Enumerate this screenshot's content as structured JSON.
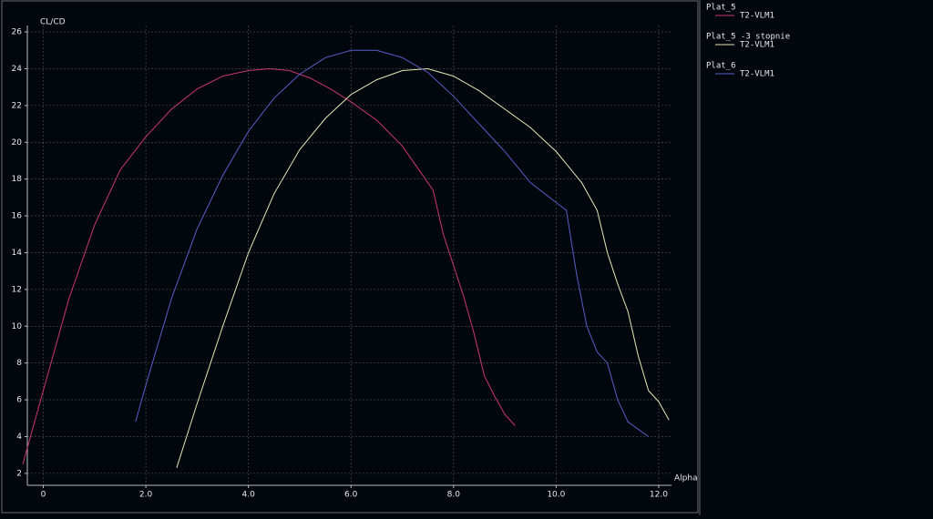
{
  "chart_data": {
    "type": "line",
    "y_label": "CL/CD",
    "x_label": "Alpha",
    "xlim": [
      -0.4,
      12.25
    ],
    "ylim": [
      1.35,
      26.35
    ],
    "xticks": [
      0,
      {
        "value": 2,
        "label": "2.0"
      },
      {
        "value": 4,
        "label": "4.0"
      },
      {
        "value": 6,
        "label": "6.0"
      },
      {
        "value": 8,
        "label": "8.0"
      },
      {
        "value": 10,
        "label": "10.0"
      },
      {
        "value": 12,
        "label": "12.0"
      }
    ],
    "yticks": [
      2,
      4,
      6,
      8,
      10,
      12,
      14,
      16,
      18,
      20,
      22,
      24,
      26
    ],
    "grid": true,
    "series": [
      {
        "name": "Plat_5",
        "analysis": "T2-VLM1",
        "color": "#c8386e",
        "x": [
          -0.4,
          0,
          0.5,
          1,
          1.5,
          2,
          2.5,
          3,
          3.5,
          4,
          4.4,
          4.8,
          5.2,
          5.6,
          6,
          6.5,
          7,
          7.6,
          7.8,
          8,
          8.2,
          8.4,
          8.6,
          8.8,
          9,
          9.2
        ],
        "values": [
          2.5,
          6.5,
          11.5,
          15.5,
          18.5,
          20.3,
          21.8,
          22.9,
          23.6,
          23.9,
          24,
          23.9,
          23.5,
          22.9,
          22.2,
          21.2,
          19.8,
          17.4,
          15,
          13.3,
          11.6,
          9.6,
          7.3,
          6.2,
          5.2,
          4.6
        ]
      },
      {
        "name": "Plat_5  -3 stopnie",
        "analysis": "T2-VLM1",
        "color": "#e6e6b4",
        "x": [
          2.6,
          3,
          3.5,
          4,
          4.5,
          5,
          5.5,
          6,
          6.5,
          7,
          7.5,
          8,
          8.5,
          9,
          9.5,
          10,
          10.5,
          10.8,
          11,
          11.2,
          11.4,
          11.6,
          11.8,
          12,
          12.2
        ],
        "values": [
          2.3,
          5.8,
          10,
          14,
          17.2,
          19.6,
          21.3,
          22.6,
          23.4,
          23.9,
          24,
          23.6,
          22.8,
          21.8,
          20.8,
          19.5,
          17.8,
          16.3,
          14,
          12.3,
          10.8,
          8.4,
          6.5,
          5.9,
          4.9
        ]
      },
      {
        "name": "Plat_6",
        "analysis": "T2-VLM1",
        "color": "#5a5ec8",
        "x": [
          1.8,
          2,
          2.5,
          3,
          3.5,
          4,
          4.5,
          5,
          5.5,
          6,
          6.5,
          7,
          7.5,
          8,
          8.5,
          9,
          9.5,
          10.2,
          10.4,
          10.6,
          10.8,
          11,
          11.2,
          11.4,
          11.8
        ],
        "values": [
          4.8,
          6.8,
          11.5,
          15.3,
          18.2,
          20.6,
          22.4,
          23.7,
          24.6,
          25,
          25,
          24.6,
          23.8,
          22.5,
          21,
          19.5,
          17.8,
          16.3,
          12.8,
          10,
          8.6,
          8,
          6,
          4.8,
          4
        ]
      }
    ]
  }
}
